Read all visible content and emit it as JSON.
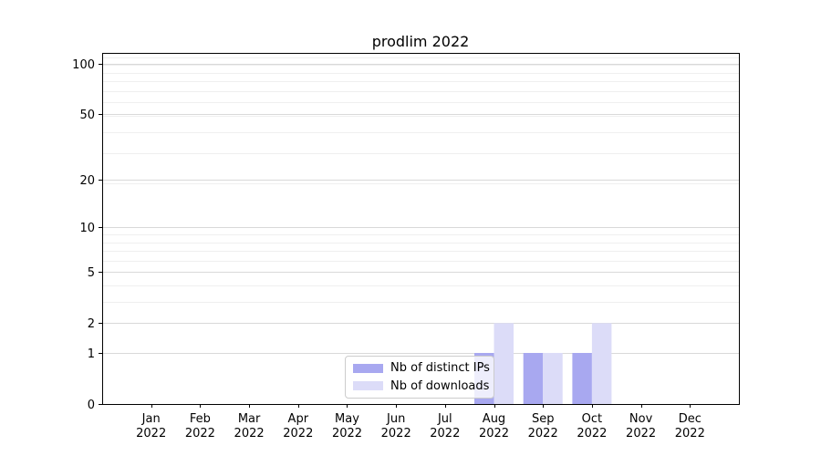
{
  "chart_data": {
    "type": "bar",
    "title": "prodlim 2022",
    "categories": [
      "Jan",
      "Feb",
      "Mar",
      "Apr",
      "May",
      "Jun",
      "Jul",
      "Aug",
      "Sep",
      "Oct",
      "Nov",
      "Dec"
    ],
    "year_label": "2022",
    "series": [
      {
        "name": "Nb of distinct IPs",
        "color": "#a8a8f0",
        "values": [
          0,
          0,
          0,
          0,
          0,
          0,
          0,
          1,
          1,
          1,
          0,
          0
        ]
      },
      {
        "name": "Nb of downloads",
        "color": "#dcdcf8",
        "values": [
          0,
          0,
          0,
          0,
          0,
          0,
          0,
          2,
          1,
          2,
          0,
          0
        ]
      }
    ],
    "y_ticks": [
      0,
      1,
      2,
      5,
      10,
      20,
      50,
      100
    ],
    "y_scale": "log1p",
    "ylim": [
      0,
      116
    ],
    "xlabel": "",
    "ylabel": "",
    "grid": "horizontal",
    "legend_position": "inside-bottom-center",
    "colors": {
      "axis": "#000000",
      "grid_major": "#d9d9d9",
      "grid_minor": "#efefef",
      "background": "#ffffff"
    }
  }
}
